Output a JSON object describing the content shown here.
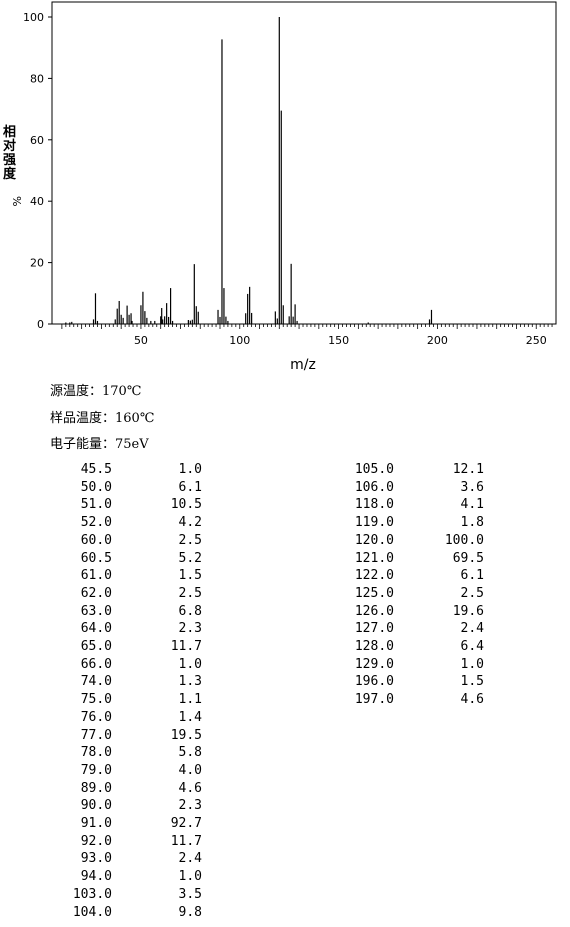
{
  "chart_data": {
    "type": "bar",
    "xlabel": "m/z",
    "ylabel": "相对强度 %",
    "xlim": [
      5,
      260
    ],
    "ylim": [
      0,
      100
    ],
    "x_ticks": [
      "50",
      "100",
      "150",
      "200",
      "250"
    ],
    "y_ticks": [
      "0",
      "20",
      "40",
      "60",
      "80",
      "100"
    ],
    "grid": false,
    "peaks": [
      {
        "mz": 12,
        "value": 0.5
      },
      {
        "mz": 14,
        "value": 0.5
      },
      {
        "mz": 15,
        "value": 0.7
      },
      {
        "mz": 26,
        "value": 1.5
      },
      {
        "mz": 27,
        "value": 10.0
      },
      {
        "mz": 28,
        "value": 1.0
      },
      {
        "mz": 37,
        "value": 1.5
      },
      {
        "mz": 38,
        "value": 5.0
      },
      {
        "mz": 39,
        "value": 7.5
      },
      {
        "mz": 40,
        "value": 3.0
      },
      {
        "mz": 41,
        "value": 2.0
      },
      {
        "mz": 43,
        "value": 6.0
      },
      {
        "mz": 44,
        "value": 3.0
      },
      {
        "mz": 45,
        "value": 3.5
      },
      {
        "mz": 45.5,
        "value": 1.0
      },
      {
        "mz": 50,
        "value": 6.1
      },
      {
        "mz": 51,
        "value": 10.5
      },
      {
        "mz": 52,
        "value": 4.2
      },
      {
        "mz": 53,
        "value": 2.0
      },
      {
        "mz": 55,
        "value": 1.0
      },
      {
        "mz": 57,
        "value": 1.0
      },
      {
        "mz": 60,
        "value": 2.5
      },
      {
        "mz": 60.5,
        "value": 5.2
      },
      {
        "mz": 61,
        "value": 1.5
      },
      {
        "mz": 62,
        "value": 2.5
      },
      {
        "mz": 63,
        "value": 6.8
      },
      {
        "mz": 64,
        "value": 2.3
      },
      {
        "mz": 65,
        "value": 11.7
      },
      {
        "mz": 66,
        "value": 1.0
      },
      {
        "mz": 74,
        "value": 1.3
      },
      {
        "mz": 75,
        "value": 1.1
      },
      {
        "mz": 76,
        "value": 1.4
      },
      {
        "mz": 77,
        "value": 19.5
      },
      {
        "mz": 78,
        "value": 5.8
      },
      {
        "mz": 79,
        "value": 4.0
      },
      {
        "mz": 89,
        "value": 4.6
      },
      {
        "mz": 90,
        "value": 2.3
      },
      {
        "mz": 91,
        "value": 92.7
      },
      {
        "mz": 92,
        "value": 11.7
      },
      {
        "mz": 93,
        "value": 2.4
      },
      {
        "mz": 94,
        "value": 1.0
      },
      {
        "mz": 103,
        "value": 3.5
      },
      {
        "mz": 104,
        "value": 9.8
      },
      {
        "mz": 105,
        "value": 12.1
      },
      {
        "mz": 106,
        "value": 3.6
      },
      {
        "mz": 118,
        "value": 4.1
      },
      {
        "mz": 119,
        "value": 1.8
      },
      {
        "mz": 120,
        "value": 100.0
      },
      {
        "mz": 121,
        "value": 69.5
      },
      {
        "mz": 122,
        "value": 6.1
      },
      {
        "mz": 125,
        "value": 2.5
      },
      {
        "mz": 126,
        "value": 19.6
      },
      {
        "mz": 127,
        "value": 2.4
      },
      {
        "mz": 128,
        "value": 6.4
      },
      {
        "mz": 129,
        "value": 1.0
      },
      {
        "mz": 165,
        "value": 0.5
      },
      {
        "mz": 196,
        "value": 1.5
      },
      {
        "mz": 197,
        "value": 4.6
      }
    ]
  },
  "conditions": {
    "source_temp": "源温度：170℃",
    "sample_temp": "样品温度：160℃",
    "electron_energy": "电子能量：75eV"
  },
  "peak_table": {
    "left": [
      [
        "45.5",
        "1.0"
      ],
      [
        "50.0",
        "6.1"
      ],
      [
        "51.0",
        "10.5"
      ],
      [
        "52.0",
        "4.2"
      ],
      [
        "60.0",
        "2.5"
      ],
      [
        "60.5",
        "5.2"
      ],
      [
        "61.0",
        "1.5"
      ],
      [
        "62.0",
        "2.5"
      ],
      [
        "63.0",
        "6.8"
      ],
      [
        "64.0",
        "2.3"
      ],
      [
        "65.0",
        "11.7"
      ],
      [
        "66.0",
        "1.0"
      ],
      [
        "74.0",
        "1.3"
      ],
      [
        "75.0",
        "1.1"
      ],
      [
        "76.0",
        "1.4"
      ],
      [
        "77.0",
        "19.5"
      ],
      [
        "78.0",
        "5.8"
      ],
      [
        "79.0",
        "4.0"
      ],
      [
        "89.0",
        "4.6"
      ],
      [
        "90.0",
        "2.3"
      ],
      [
        "91.0",
        "92.7"
      ],
      [
        "92.0",
        "11.7"
      ],
      [
        "93.0",
        "2.4"
      ],
      [
        "94.0",
        "1.0"
      ],
      [
        "103.0",
        "3.5"
      ],
      [
        "104.0",
        "9.8"
      ]
    ],
    "right": [
      [
        "105.0",
        "12.1"
      ],
      [
        "106.0",
        "3.6"
      ],
      [
        "118.0",
        "4.1"
      ],
      [
        "119.0",
        "1.8"
      ],
      [
        "120.0",
        "100.0"
      ],
      [
        "121.0",
        "69.5"
      ],
      [
        "122.0",
        "6.1"
      ],
      [
        "125.0",
        "2.5"
      ],
      [
        "126.0",
        "19.6"
      ],
      [
        "127.0",
        "2.4"
      ],
      [
        "128.0",
        "6.4"
      ],
      [
        "129.0",
        "1.0"
      ],
      [
        "196.0",
        "1.5"
      ],
      [
        "197.0",
        "4.6"
      ]
    ]
  }
}
